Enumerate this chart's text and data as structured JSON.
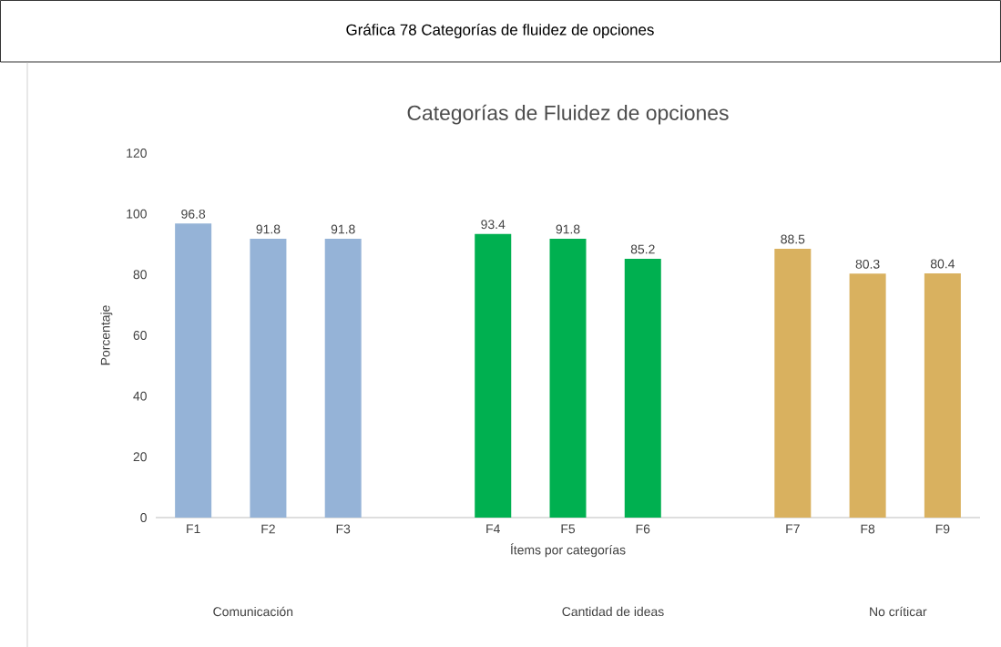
{
  "chart_data": {
    "type": "bar",
    "title": "Categorías de Fluidez de opciones",
    "xlabel": "Ítems por categorías",
    "ylabel": "Porcentaje",
    "categories": [
      "F1",
      "F2",
      "F3",
      null,
      "F4",
      "F5",
      "F6",
      null,
      "F7",
      "F8",
      "F9"
    ],
    "values": [
      96.8,
      91.8,
      91.8,
      null,
      93.4,
      91.8,
      85.2,
      null,
      88.5,
      80.3,
      80.4
    ],
    "colors": [
      "#95b3d7",
      "#95b3d7",
      "#95b3d7",
      null,
      "#00b050",
      "#00b050",
      "#00b050",
      null,
      "#d9b15f",
      "#d9b15f",
      "#d9b15f"
    ],
    "ylim": [
      0,
      120
    ],
    "yticks": [
      0,
      20,
      40,
      60,
      80,
      100,
      120
    ],
    "data_labels": true,
    "grid": false,
    "annotations": [
      "Gráfica  78 Categorías de fluidez de opciones",
      "Comunicación",
      "Cantidad de ideas",
      "No críticar"
    ]
  }
}
